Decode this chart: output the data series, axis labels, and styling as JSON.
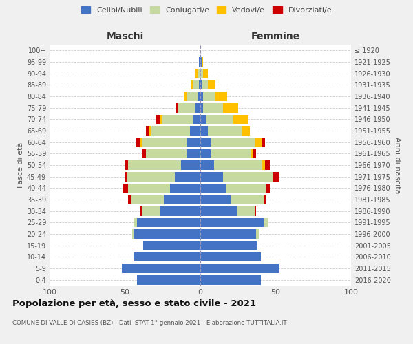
{
  "age_groups": [
    "0-4",
    "5-9",
    "10-14",
    "15-19",
    "20-24",
    "25-29",
    "30-34",
    "35-39",
    "40-44",
    "45-49",
    "50-54",
    "55-59",
    "60-64",
    "65-69",
    "70-74",
    "75-79",
    "80-84",
    "85-89",
    "90-94",
    "95-99",
    "100+"
  ],
  "birth_years": [
    "2016-2020",
    "2011-2015",
    "2006-2010",
    "2001-2005",
    "1996-2000",
    "1991-1995",
    "1986-1990",
    "1981-1985",
    "1976-1980",
    "1971-1975",
    "1966-1970",
    "1961-1965",
    "1956-1960",
    "1951-1955",
    "1946-1950",
    "1941-1945",
    "1936-1940",
    "1931-1935",
    "1926-1930",
    "1921-1925",
    "≤ 1920"
  ],
  "colors": {
    "celibi": "#4472c4",
    "coniugati": "#c5d9a0",
    "vedovi": "#ffc000",
    "divorziati": "#cc0000"
  },
  "male": {
    "celibi": [
      42,
      52,
      44,
      38,
      44,
      42,
      27,
      24,
      20,
      17,
      13,
      9,
      9,
      7,
      5,
      3,
      2,
      1,
      0,
      1,
      0
    ],
    "coniugati": [
      0,
      0,
      0,
      0,
      1,
      2,
      12,
      22,
      28,
      32,
      35,
      27,
      30,
      26,
      20,
      12,
      7,
      4,
      2,
      0,
      0
    ],
    "vedovi": [
      0,
      0,
      0,
      0,
      0,
      0,
      0,
      0,
      0,
      0,
      0,
      0,
      1,
      1,
      2,
      0,
      2,
      1,
      1,
      0,
      0
    ],
    "divorziati": [
      0,
      0,
      0,
      0,
      0,
      0,
      1,
      2,
      3,
      1,
      2,
      3,
      3,
      2,
      2,
      1,
      0,
      0,
      0,
      0,
      0
    ]
  },
  "female": {
    "celibi": [
      40,
      52,
      40,
      38,
      37,
      42,
      24,
      20,
      17,
      15,
      9,
      7,
      7,
      5,
      4,
      2,
      2,
      1,
      0,
      1,
      0
    ],
    "coniugati": [
      0,
      0,
      0,
      0,
      2,
      3,
      12,
      22,
      27,
      33,
      32,
      27,
      29,
      23,
      18,
      13,
      8,
      4,
      2,
      0,
      0
    ],
    "vedovi": [
      0,
      0,
      0,
      0,
      0,
      0,
      0,
      0,
      0,
      0,
      2,
      1,
      5,
      5,
      10,
      10,
      8,
      5,
      3,
      1,
      0
    ],
    "divorziati": [
      0,
      0,
      0,
      0,
      0,
      0,
      1,
      2,
      2,
      4,
      3,
      2,
      2,
      0,
      0,
      0,
      0,
      0,
      0,
      0,
      0
    ]
  },
  "title": "Popolazione per età, sesso e stato civile - 2021",
  "subtitle": "COMUNE DI VALLE DI CASIES (BZ) - Dati ISTAT 1° gennaio 2021 - Elaborazione TUTTITALIA.IT",
  "xlabel_left": "Maschi",
  "xlabel_right": "Femmine",
  "ylabel_left": "Fasce di età",
  "ylabel_right": "Anni di nascita",
  "xlim": 100,
  "legend_labels": [
    "Celibi/Nubili",
    "Coniugati/e",
    "Vedovi/e",
    "Divorziati/e"
  ],
  "bg_color": "#f0f0f0",
  "plot_bg": "#ffffff"
}
